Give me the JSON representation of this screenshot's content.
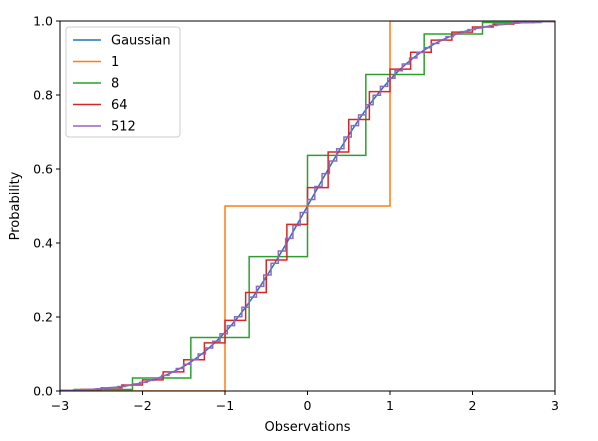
{
  "chart_data": {
    "type": "line",
    "xlabel": "Observations",
    "ylabel": "Probability",
    "xlim": [
      -3,
      3
    ],
    "ylim": [
      0,
      1
    ],
    "xticks": [
      -3,
      -2,
      -1,
      0,
      1,
      2,
      3
    ],
    "yticks": [
      0.0,
      0.2,
      0.4,
      0.6,
      0.8,
      1.0
    ],
    "xtick_labels": [
      "−3",
      "−2",
      "−1",
      "0",
      "1",
      "2",
      "3"
    ],
    "ytick_labels": [
      "0.0",
      "0.2",
      "0.4",
      "0.6",
      "0.8",
      "1.0"
    ],
    "grid": false,
    "legend_position": "upper-left",
    "series": [
      {
        "name": "Gaussian",
        "kind": "normal-cdf",
        "color": "#1f77b4",
        "samples": 300
      },
      {
        "name": "1",
        "kind": "binomial-step",
        "n": 1,
        "color": "#ff7f0e"
      },
      {
        "name": "8",
        "kind": "binomial-step",
        "n": 8,
        "color": "#2ca02c"
      },
      {
        "name": "64",
        "kind": "binomial-step",
        "n": 64,
        "color": "#d62728"
      },
      {
        "name": "512",
        "kind": "binomial-step",
        "n": 512,
        "color": "#9467bd"
      }
    ]
  }
}
